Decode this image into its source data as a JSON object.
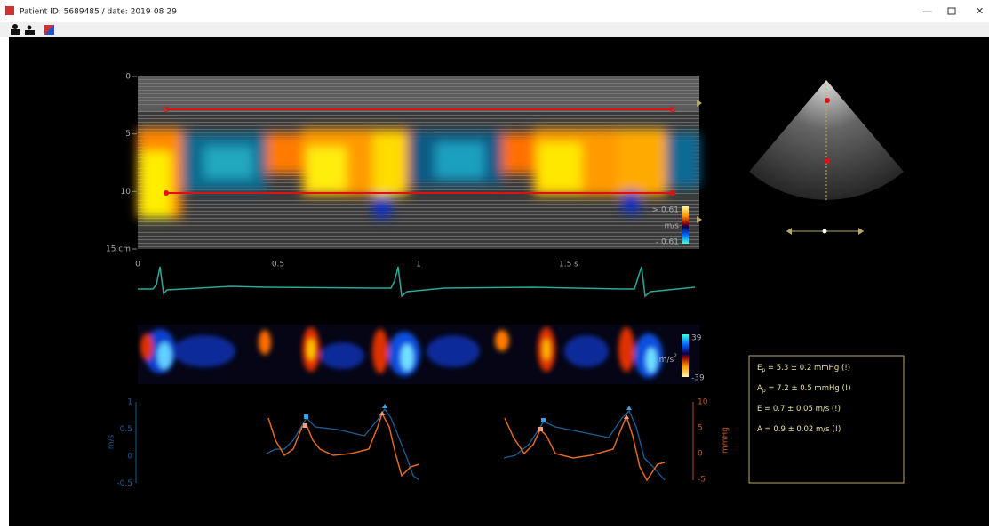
{
  "window": {
    "title": "Patient ID: 5689485  /  date: 2019-08-29"
  },
  "mmode": {
    "depth_ticks": [
      "0",
      "5",
      "10",
      "15 cm"
    ],
    "time_ticks": [
      "0",
      "0.5",
      "1",
      "1.5 s"
    ],
    "colorbar": {
      "max": "> 0.61",
      "unit": "m/s",
      "min": "- 0.61"
    }
  },
  "acceleration": {
    "colorbar": {
      "max": "39",
      "unit": "m/s",
      "unit_exp": "2",
      "min": "-39"
    }
  },
  "traces": {
    "left_axis": {
      "label": "m/s",
      "ticks": [
        "1",
        "0.5",
        "0",
        "-0.5"
      ]
    },
    "right_axis": {
      "label": "mmHg",
      "ticks": [
        "10",
        "5",
        "0",
        "-5"
      ]
    }
  },
  "results": [
    {
      "symbol": "E",
      "sub": "p",
      "text": " = 5.3 ± 0.2 mmHg (!)"
    },
    {
      "symbol": "A",
      "sub": "p",
      "text": " = 7.2 ± 0.5 mmHg (!)"
    },
    {
      "symbol": "E",
      "text": " = 0.7 ± 0.05 m/s (!)"
    },
    {
      "symbol": "A",
      "text": " = 0.9 ± 0.02 m/s (!)"
    }
  ]
}
